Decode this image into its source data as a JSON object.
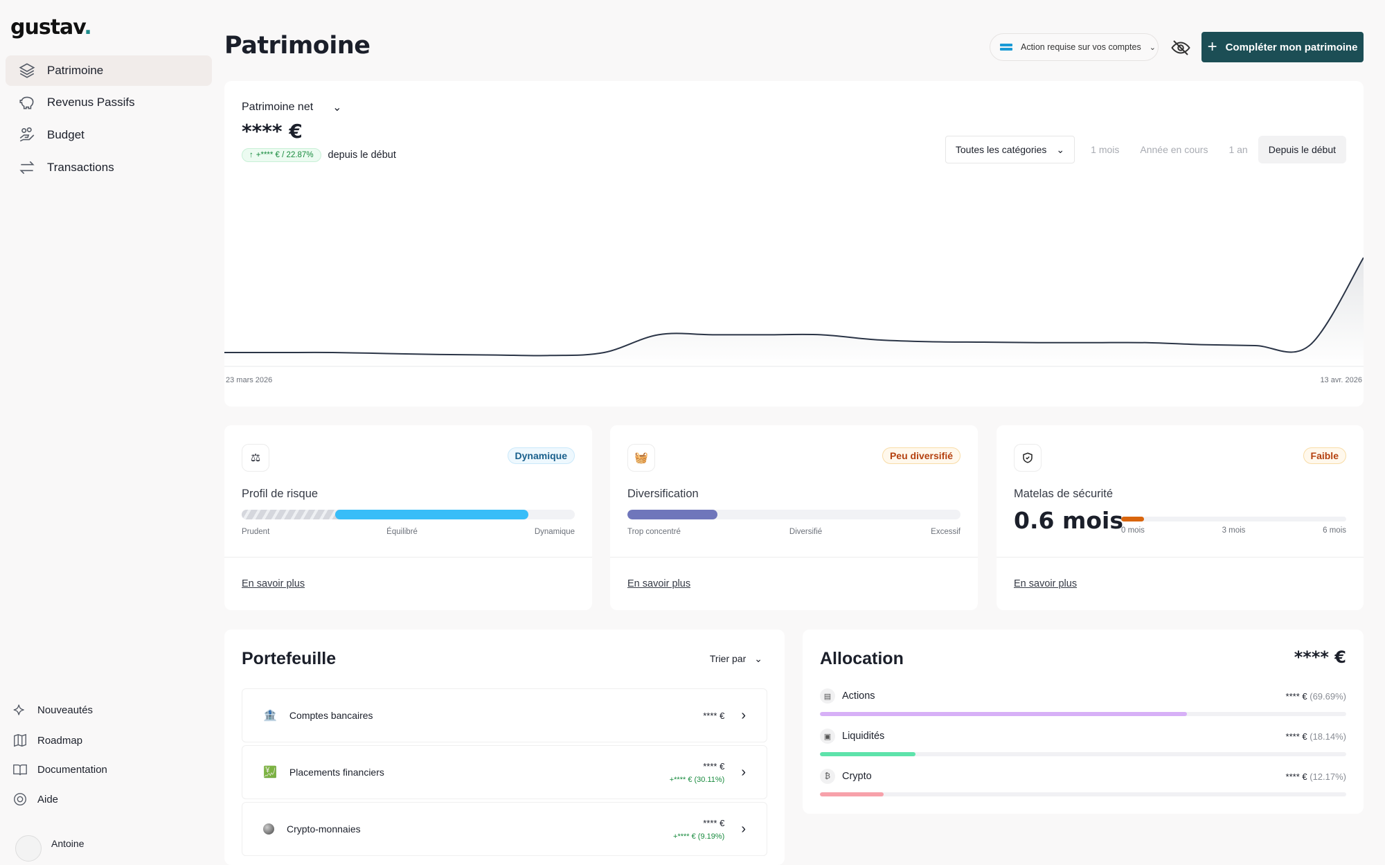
{
  "app": {
    "logo": "gustav",
    "logo_dot": "."
  },
  "sidebar": {
    "items": [
      {
        "label": "Patrimoine",
        "icon": "layers-icon"
      },
      {
        "label": "Revenus Passifs",
        "icon": "piggy-bank-icon"
      },
      {
        "label": "Budget",
        "icon": "hand-coins-icon"
      },
      {
        "label": "Transactions",
        "icon": "arrows-exchange-icon"
      }
    ],
    "bottom": [
      {
        "label": "Nouveautés",
        "icon": "sparkles-icon"
      },
      {
        "label": "Roadmap",
        "icon": "map-icon"
      },
      {
        "label": "Documentation",
        "icon": "book-icon"
      },
      {
        "label": "Aide",
        "icon": "lifebuoy-icon"
      }
    ],
    "user": "Antoine"
  },
  "header": {
    "title": "Patrimoine",
    "action_required": "Action requise sur vos comptes",
    "cta": "Compléter mon patrimoine"
  },
  "net": {
    "label": "Patrimoine net",
    "value": "**** €",
    "change": "+**** € / 22.87%",
    "since": "depuis le début",
    "category_select": "Toutes les catégories",
    "periods": [
      "1 mois",
      "Année en cours",
      "1 an",
      "Depuis le début"
    ],
    "active_period": "Depuis le début"
  },
  "chart_data": {
    "type": "area",
    "x_start": "23 mars 2026",
    "x_end": "13 avr. 2026",
    "tick_labels": [
      "23 mars 2026",
      "13 avr. 2026"
    ],
    "values": [
      14,
      14,
      14,
      13,
      12,
      11.5,
      11,
      14,
      32,
      32,
      32,
      32,
      27,
      25,
      24.5,
      24,
      24,
      24,
      22,
      21,
      21,
      110
    ],
    "ylim": [
      0,
      125
    ],
    "grid": false,
    "line_color": "#2a3446"
  },
  "metrics": [
    {
      "title": "Profil de risque",
      "tag": "Dynamique",
      "scale": [
        "Prudent",
        "Équilibré",
        "Dynamique"
      ],
      "range_start": 0.28,
      "range_end": 0.86,
      "link": "En savoir plus"
    },
    {
      "title": "Diversification",
      "tag": "Peu diversifié",
      "scale": [
        "Trop concentré",
        "Diversifié",
        "Excessif"
      ],
      "fill": 0.27,
      "link": "En savoir plus"
    },
    {
      "title": "Matelas de sécurité",
      "tag": "Faible",
      "value": "0.6 mois",
      "scale": [
        "0 mois",
        "3 mois",
        "6 mois"
      ],
      "fill": 0.1,
      "link": "En savoir plus"
    }
  ],
  "portfolio": {
    "title": "Portefeuille",
    "sort": "Trier par",
    "rows": [
      {
        "name": "Comptes bancaires",
        "amount": "**** €",
        "gain": ""
      },
      {
        "name": "Placements financiers",
        "amount": "**** €",
        "gain": "+**** € (30.11%)"
      },
      {
        "name": "Crypto-monnaies",
        "amount": "**** €",
        "gain": "+**** € (9.19%)"
      }
    ]
  },
  "allocation": {
    "title": "Allocation",
    "total": "**** €",
    "items": [
      {
        "name": "Actions",
        "amount": "**** €",
        "pct": "(69.69%)",
        "value": 69.69,
        "color": "#d7b0f7"
      },
      {
        "name": "Liquidités",
        "amount": "**** €",
        "pct": "(18.14%)",
        "value": 18.14,
        "color": "#5ee3ab"
      },
      {
        "name": "Crypto",
        "amount": "**** €",
        "pct": "(12.17%)",
        "value": 12.17,
        "color": "#f7a1aa"
      }
    ]
  }
}
